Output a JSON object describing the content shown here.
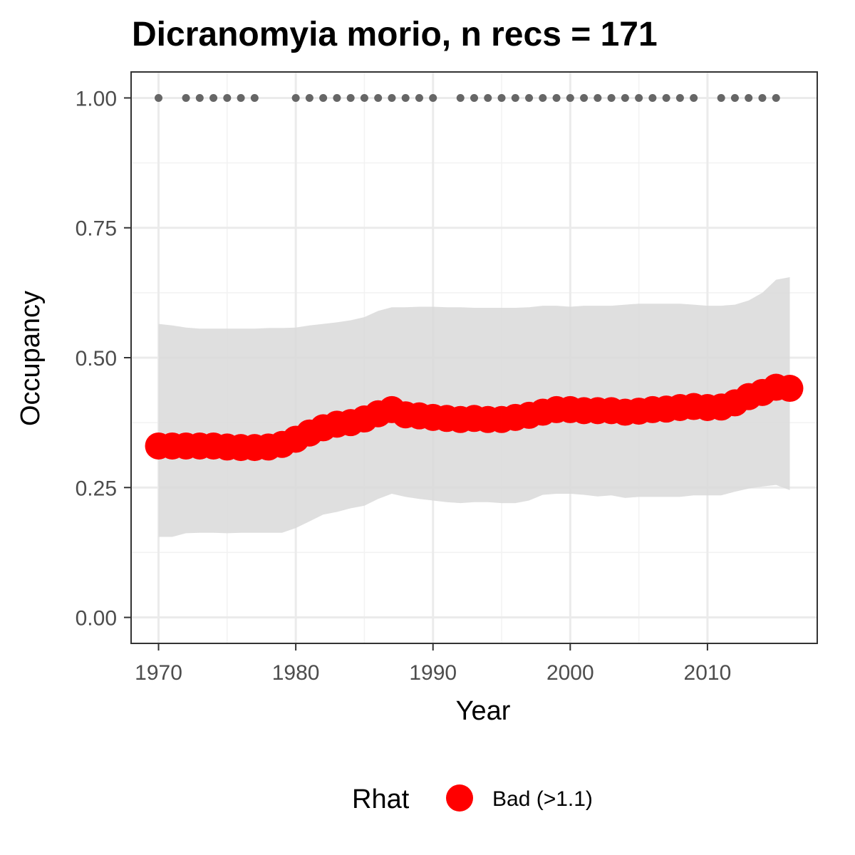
{
  "chart_data": {
    "type": "line",
    "title": "Dicranomyia morio, n recs = 171",
    "xlabel": "Year",
    "ylabel": "Occupancy",
    "xlim": [
      1968,
      2018
    ],
    "ylim": [
      -0.05,
      1.05
    ],
    "x_ticks": [
      1970,
      1980,
      1990,
      2000,
      2010
    ],
    "x_tick_labels": [
      "1970",
      "1980",
      "1990",
      "2000",
      "2010"
    ],
    "y_ticks": [
      0,
      0.25,
      0.5,
      0.75,
      1
    ],
    "y_tick_labels": [
      "0.00",
      "0.25",
      "0.50",
      "0.75",
      "1.00"
    ],
    "grid": true,
    "legend": {
      "position": "bottom",
      "title": "Rhat",
      "entries": [
        {
          "label": "Bad (>1.1)",
          "color": "#ff0000"
        }
      ]
    },
    "series": [
      {
        "name": "Bad (>1.1)",
        "role": "mean occupancy",
        "color": "#ff0000",
        "x": [
          1970,
          1971,
          1972,
          1973,
          1974,
          1975,
          1976,
          1977,
          1978,
          1979,
          1980,
          1981,
          1982,
          1983,
          1984,
          1985,
          1986,
          1987,
          1988,
          1989,
          1990,
          1991,
          1992,
          1993,
          1994,
          1995,
          1996,
          1997,
          1998,
          1999,
          2000,
          2001,
          2002,
          2003,
          2004,
          2005,
          2006,
          2007,
          2008,
          2009,
          2010,
          2011,
          2012,
          2013,
          2014,
          2015,
          2016
        ],
        "values": [
          0.33,
          0.33,
          0.33,
          0.33,
          0.33,
          0.328,
          0.327,
          0.327,
          0.328,
          0.333,
          0.343,
          0.355,
          0.365,
          0.372,
          0.375,
          0.382,
          0.392,
          0.4,
          0.39,
          0.388,
          0.385,
          0.383,
          0.381,
          0.383,
          0.381,
          0.381,
          0.385,
          0.389,
          0.395,
          0.4,
          0.4,
          0.398,
          0.398,
          0.398,
          0.395,
          0.397,
          0.4,
          0.401,
          0.404,
          0.406,
          0.404,
          0.405,
          0.413,
          0.425,
          0.433,
          0.443,
          0.441
        ]
      }
    ],
    "ribbon": {
      "role": "credible interval",
      "color": "#d9d9d9",
      "x": [
        1970,
        1971,
        1972,
        1973,
        1974,
        1975,
        1976,
        1977,
        1978,
        1979,
        1980,
        1981,
        1982,
        1983,
        1984,
        1985,
        1986,
        1987,
        1988,
        1989,
        1990,
        1991,
        1992,
        1993,
        1994,
        1995,
        1996,
        1997,
        1998,
        1999,
        2000,
        2001,
        2002,
        2003,
        2004,
        2005,
        2006,
        2007,
        2008,
        2009,
        2010,
        2011,
        2012,
        2013,
        2014,
        2015,
        2016
      ],
      "lower": [
        0.155,
        0.155,
        0.162,
        0.163,
        0.163,
        0.162,
        0.163,
        0.163,
        0.163,
        0.163,
        0.172,
        0.185,
        0.198,
        0.203,
        0.21,
        0.215,
        0.228,
        0.238,
        0.232,
        0.228,
        0.225,
        0.222,
        0.22,
        0.222,
        0.222,
        0.22,
        0.22,
        0.225,
        0.236,
        0.238,
        0.238,
        0.236,
        0.233,
        0.235,
        0.23,
        0.232,
        0.232,
        0.232,
        0.232,
        0.235,
        0.235,
        0.235,
        0.242,
        0.248,
        0.252,
        0.255,
        0.245
      ],
      "upper": [
        0.565,
        0.562,
        0.558,
        0.556,
        0.556,
        0.556,
        0.556,
        0.556,
        0.557,
        0.557,
        0.558,
        0.562,
        0.565,
        0.568,
        0.572,
        0.578,
        0.59,
        0.597,
        0.597,
        0.598,
        0.598,
        0.597,
        0.597,
        0.596,
        0.596,
        0.596,
        0.596,
        0.597,
        0.6,
        0.6,
        0.598,
        0.6,
        0.6,
        0.6,
        0.602,
        0.604,
        0.604,
        0.604,
        0.604,
        0.602,
        0.6,
        0.6,
        0.602,
        0.61,
        0.625,
        0.65,
        0.655
      ]
    },
    "detections": {
      "role": "years with records",
      "color": "#666666",
      "y": 1,
      "x": [
        1970,
        1972,
        1973,
        1974,
        1975,
        1976,
        1977,
        1980,
        1981,
        1982,
        1983,
        1984,
        1985,
        1986,
        1987,
        1988,
        1989,
        1990,
        1992,
        1993,
        1994,
        1995,
        1996,
        1997,
        1998,
        1999,
        2000,
        2001,
        2002,
        2003,
        2004,
        2005,
        2006,
        2007,
        2008,
        2009,
        2011,
        2012,
        2013,
        2014,
        2015
      ]
    }
  }
}
